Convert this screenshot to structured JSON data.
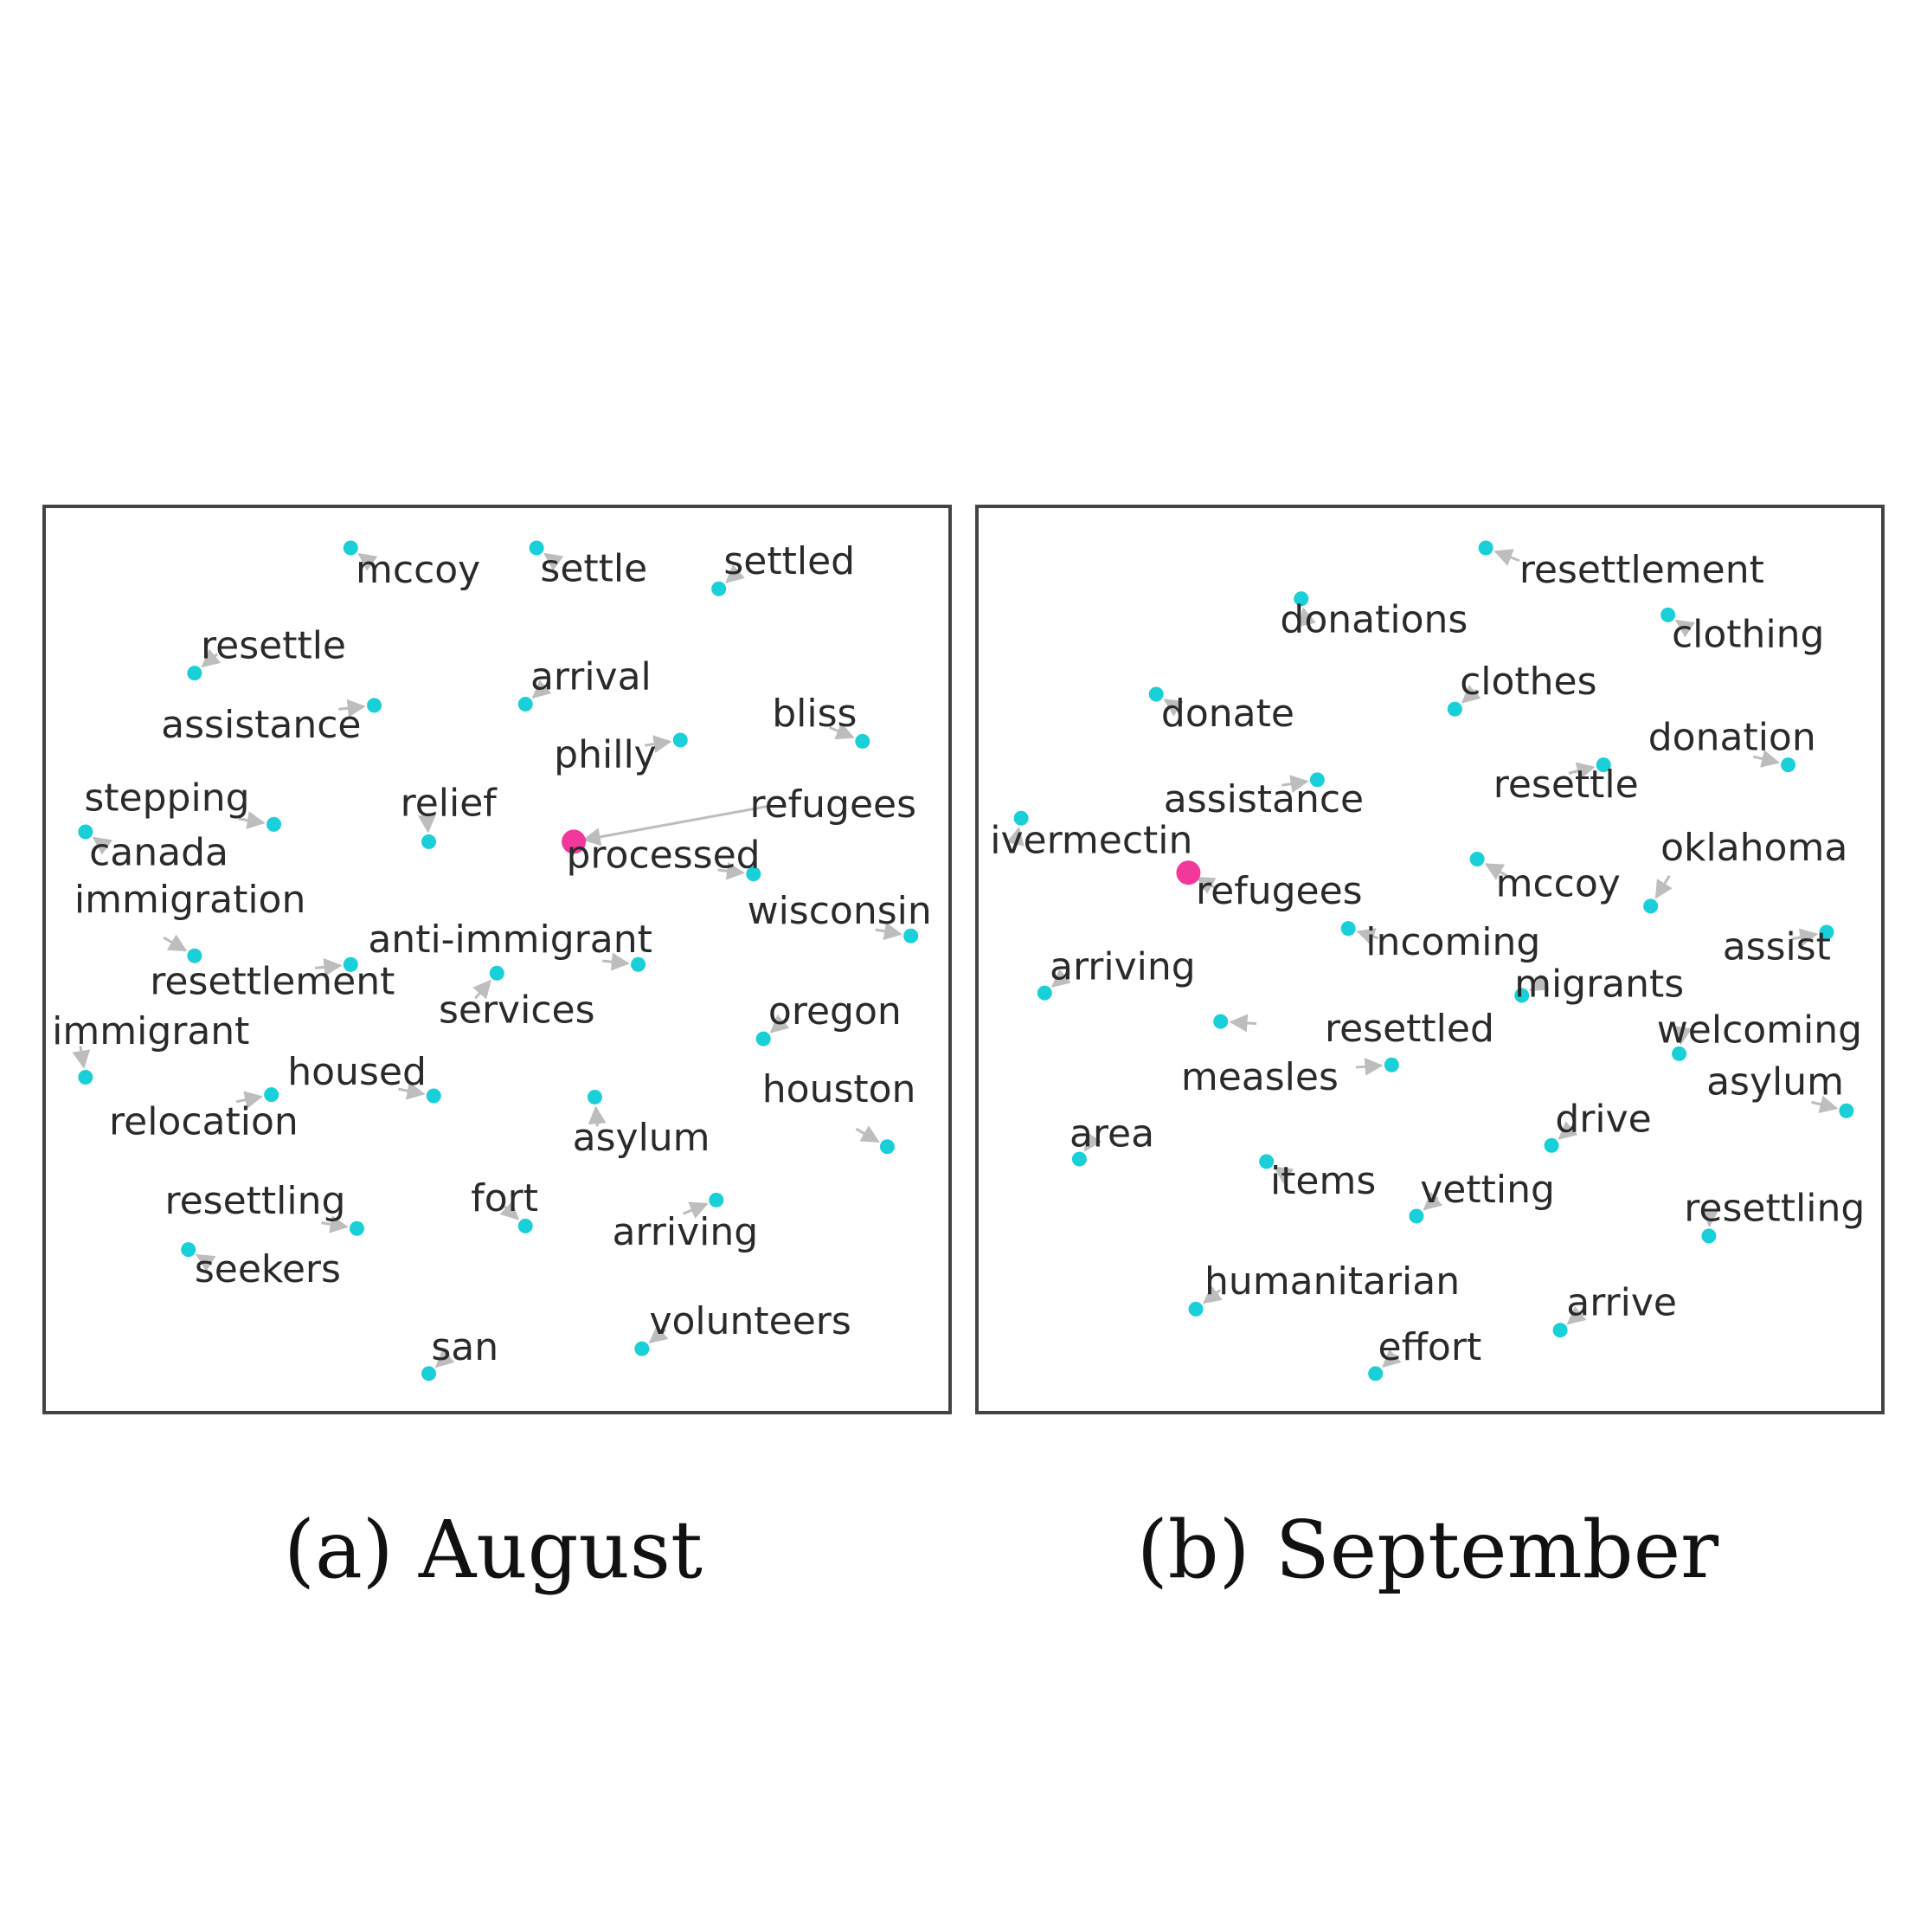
{
  "colors": {
    "word_point": "#19cfd8",
    "target_point": "#f2389a",
    "arrow": "#bdbdbd",
    "frame": "#444444",
    "label": "#2a2a2a"
  },
  "panels": [
    {
      "caption": "(a) August",
      "target_word": "refugees",
      "words": [
        {
          "word": "mccoy"
        },
        {
          "word": "settle"
        },
        {
          "word": "settled"
        },
        {
          "word": "resettle"
        },
        {
          "word": "arrival"
        },
        {
          "word": "assistance"
        },
        {
          "word": "bliss"
        },
        {
          "word": "philly"
        },
        {
          "word": "stepping"
        },
        {
          "word": "relief"
        },
        {
          "word": "refugees"
        },
        {
          "word": "canada"
        },
        {
          "word": "processed"
        },
        {
          "word": "immigration"
        },
        {
          "word": "wisconsin"
        },
        {
          "word": "anti-immigrant"
        },
        {
          "word": "resettlement"
        },
        {
          "word": "services"
        },
        {
          "word": "immigrant"
        },
        {
          "word": "oregon"
        },
        {
          "word": "housed"
        },
        {
          "word": "houston"
        },
        {
          "word": "relocation"
        },
        {
          "word": "asylum"
        },
        {
          "word": "resettling"
        },
        {
          "word": "fort"
        },
        {
          "word": "arriving"
        },
        {
          "word": "seekers"
        },
        {
          "word": "volunteers"
        },
        {
          "word": "san"
        }
      ]
    },
    {
      "caption": "(b) September",
      "target_word": "refugees",
      "words": [
        {
          "word": "resettlement"
        },
        {
          "word": "donations"
        },
        {
          "word": "clothing"
        },
        {
          "word": "clothes"
        },
        {
          "word": "donate"
        },
        {
          "word": "donation"
        },
        {
          "word": "assistance"
        },
        {
          "word": "resettle"
        },
        {
          "word": "ivermectin"
        },
        {
          "word": "oklahoma"
        },
        {
          "word": "refugees"
        },
        {
          "word": "mccoy"
        },
        {
          "word": "incoming"
        },
        {
          "word": "assist"
        },
        {
          "word": "arriving"
        },
        {
          "word": "migrants"
        },
        {
          "word": "resettled"
        },
        {
          "word": "welcoming"
        },
        {
          "word": "measles"
        },
        {
          "word": "asylum"
        },
        {
          "word": "area"
        },
        {
          "word": "drive"
        },
        {
          "word": "items"
        },
        {
          "word": "vetting"
        },
        {
          "word": "resettling"
        },
        {
          "word": "humanitarian"
        },
        {
          "word": "arrive"
        },
        {
          "word": "effort"
        }
      ]
    }
  ]
}
